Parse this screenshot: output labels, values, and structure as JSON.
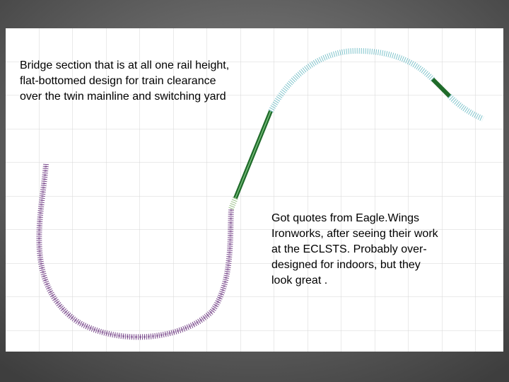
{
  "annotations": {
    "bridge_note": [
      "Bridge section that is at all one rail height,",
      "flat-bottomed design for train clearance",
      "over the twin mainline and switching yard"
    ],
    "quote_note": [
      "Got quotes from Eagle.Wings",
      "Ironworks, after seeing their work",
      "at the ECLSTS. Probably over-",
      "designed for indoors, but they",
      "look great ."
    ]
  }
}
